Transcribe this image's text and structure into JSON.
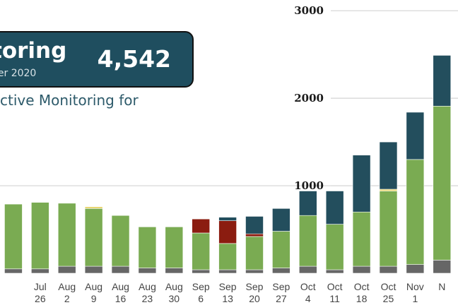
{
  "header": {
    "title": "toring",
    "date_text": "ber 2020",
    "count": "4,542",
    "subtitle": "ctive Monitoring for"
  },
  "chart_data": {
    "type": "bar",
    "stacked": true,
    "categories": [
      "Jul 26",
      "Aug 2",
      "Aug 9",
      "Aug 16",
      "Aug 23",
      "Aug 30",
      "Sep 6",
      "Sep 13",
      "Sep 20",
      "Sep 27",
      "Oct 4",
      "Oct 11",
      "Oct 18",
      "Oct 25",
      "Nov 1",
      "N"
    ],
    "category_lines": [
      [
        "Jul",
        "26"
      ],
      [
        "Aug",
        "2"
      ],
      [
        "Aug",
        "9"
      ],
      [
        "Aug",
        "16"
      ],
      [
        "Aug",
        "23"
      ],
      [
        "Aug",
        "30"
      ],
      [
        "Sep",
        "6"
      ],
      [
        "Sep",
        "13"
      ],
      [
        "Sep",
        "20"
      ],
      [
        "Sep",
        "27"
      ],
      [
        "Oct",
        "4"
      ],
      [
        "Oct",
        "11"
      ],
      [
        "Oct",
        "18"
      ],
      [
        "Oct",
        "25"
      ],
      [
        "Nov",
        "1"
      ],
      [
        "N",
        ""
      ]
    ],
    "series": [
      {
        "color": "#666666",
        "values": [
          50,
          80,
          80,
          80,
          60,
          60,
          40,
          40,
          40,
          60,
          80,
          40,
          80,
          80,
          100,
          150
        ]
      },
      {
        "color": "#7aab52",
        "values": [
          760,
          720,
          660,
          580,
          470,
          470,
          420,
          300,
          380,
          420,
          580,
          520,
          620,
          860,
          1200,
          1760
        ]
      },
      {
        "color": "#e8d36a",
        "values": [
          0,
          0,
          20,
          0,
          0,
          0,
          0,
          0,
          0,
          0,
          0,
          0,
          0,
          20,
          0,
          0
        ]
      },
      {
        "color": "#8b1c10",
        "values": [
          0,
          0,
          0,
          0,
          0,
          0,
          160,
          260,
          30,
          0,
          0,
          0,
          0,
          0,
          0,
          0
        ]
      },
      {
        "color": "#234e5d",
        "values": [
          0,
          0,
          0,
          0,
          0,
          0,
          0,
          40,
          200,
          260,
          280,
          380,
          650,
          540,
          540,
          580
        ]
      }
    ],
    "yticks": [
      1000,
      2000,
      3000
    ],
    "ylim": [
      0,
      3050
    ],
    "xlim": [
      -1.5,
      15.6
    ],
    "grid": true
  }
}
